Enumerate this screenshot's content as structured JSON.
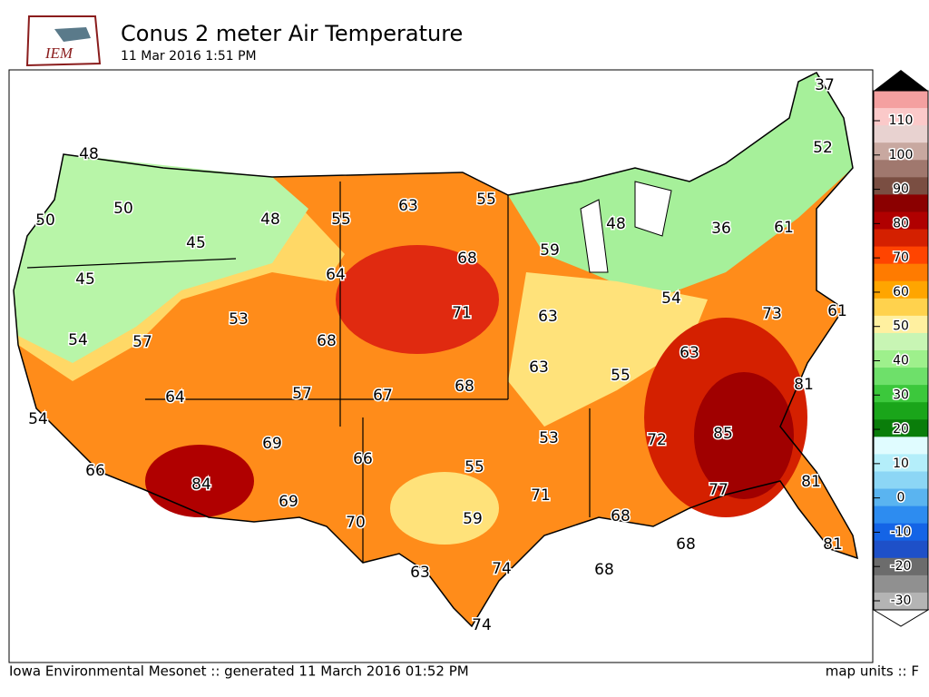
{
  "header": {
    "logo": "IEM",
    "title": "Conus 2 meter Air Temperature",
    "subtitle": "11 Mar 2016 1:51 PM"
  },
  "stations": [
    "37",
    "48",
    "52",
    "50",
    "50",
    "63",
    "55",
    "55",
    "48",
    "45",
    "48",
    "36",
    "61",
    "59",
    "68",
    "64",
    "45",
    "54",
    "53",
    "71",
    "63",
    "73",
    "61",
    "54",
    "57",
    "68",
    "63",
    "63",
    "55",
    "57",
    "67",
    "68",
    "81",
    "64",
    "54",
    "53",
    "72",
    "85",
    "69",
    "66",
    "55",
    "66",
    "84",
    "81",
    "77",
    "71",
    "69",
    "59",
    "68",
    "70",
    "68",
    "81",
    "63",
    "74",
    "68",
    "74"
  ],
  "colorbar": {
    "ticks": [
      110,
      100,
      90,
      80,
      70,
      60,
      50,
      40,
      30,
      20,
      10,
      0,
      -10,
      -20,
      -30
    ]
  },
  "footer": {
    "credit": "Iowa Environmental Mesonet :: generated 11 March 2016 01:52 PM",
    "units": "map units :: F"
  }
}
